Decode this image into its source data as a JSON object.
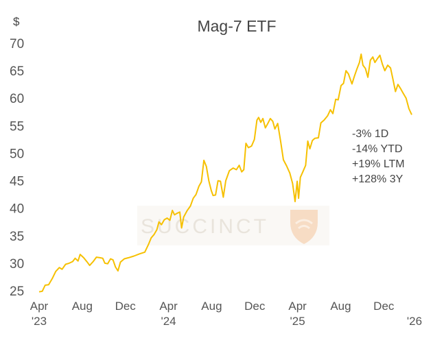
{
  "chart_data": {
    "type": "line",
    "title": "Mag-7 ETF",
    "ylabel": "$",
    "ylim": [
      25,
      70
    ],
    "yticks": [
      25,
      30,
      35,
      40,
      45,
      50,
      55,
      60,
      65,
      70
    ],
    "grid": false,
    "x_ticks": [
      {
        "x": "2023-04-01",
        "label": "Apr"
      },
      {
        "x": "2023-08-01",
        "label": "Aug"
      },
      {
        "x": "2023-12-01",
        "label": "Dec"
      },
      {
        "x": "2024-04-01",
        "label": "Apr"
      },
      {
        "x": "2024-08-01",
        "label": "Aug"
      },
      {
        "x": "2024-12-01",
        "label": "Dec"
      },
      {
        "x": "2025-04-01",
        "label": "Apr"
      },
      {
        "x": "2025-08-01",
        "label": "Aug"
      },
      {
        "x": "2025-12-01",
        "label": "Dec"
      }
    ],
    "year_labels": [
      {
        "x": "2023-04-01",
        "label": "'23"
      },
      {
        "x": "2024-04-01",
        "label": "'24"
      },
      {
        "x": "2025-04-01",
        "label": "'25"
      },
      {
        "x": "2026-04-01",
        "label": "'26"
      }
    ],
    "series": [
      {
        "color": "#f6c000",
        "points": [
          [
            "2023-04-01",
            24.8
          ],
          [
            "2023-04-10",
            24.9
          ],
          [
            "2023-04-18",
            26.0
          ],
          [
            "2023-04-28",
            26.1
          ],
          [
            "2023-05-08",
            27.2
          ],
          [
            "2023-05-18",
            28.5
          ],
          [
            "2023-05-28",
            29.2
          ],
          [
            "2023-06-05",
            28.9
          ],
          [
            "2023-06-15",
            29.8
          ],
          [
            "2023-06-25",
            30.0
          ],
          [
            "2023-07-05",
            30.3
          ],
          [
            "2023-07-12",
            30.9
          ],
          [
            "2023-07-20",
            30.4
          ],
          [
            "2023-07-26",
            31.6
          ],
          [
            "2023-08-05",
            31.0
          ],
          [
            "2023-08-15",
            30.2
          ],
          [
            "2023-08-22",
            29.6
          ],
          [
            "2023-09-01",
            30.3
          ],
          [
            "2023-09-10",
            31.1
          ],
          [
            "2023-09-20",
            31.0
          ],
          [
            "2023-09-28",
            30.9
          ],
          [
            "2023-10-04",
            30.0
          ],
          [
            "2023-10-12",
            29.9
          ],
          [
            "2023-10-20",
            30.8
          ],
          [
            "2023-10-27",
            30.6
          ],
          [
            "2023-11-03",
            29.3
          ],
          [
            "2023-11-10",
            28.6
          ],
          [
            "2023-11-17",
            30.2
          ],
          [
            "2023-11-28",
            30.8
          ],
          [
            "2023-12-10",
            31.0
          ],
          [
            "2023-12-25",
            31.3
          ],
          [
            "2024-01-10",
            31.7
          ],
          [
            "2024-01-25",
            32.0
          ],
          [
            "2024-02-05",
            33.5
          ],
          [
            "2024-02-12",
            34.6
          ],
          [
            "2024-02-20",
            35.2
          ],
          [
            "2024-02-28",
            36.1
          ],
          [
            "2024-03-05",
            37.5
          ],
          [
            "2024-03-12",
            37.0
          ],
          [
            "2024-03-20",
            37.9
          ],
          [
            "2024-03-28",
            38.2
          ],
          [
            "2024-04-05",
            37.8
          ],
          [
            "2024-04-12",
            39.6
          ],
          [
            "2024-04-18",
            38.8
          ],
          [
            "2024-04-26",
            39.1
          ],
          [
            "2024-05-03",
            39.3
          ],
          [
            "2024-05-08",
            36.4
          ],
          [
            "2024-05-14",
            38.4
          ],
          [
            "2024-05-24",
            39.6
          ],
          [
            "2024-06-02",
            40.4
          ],
          [
            "2024-06-10",
            41.8
          ],
          [
            "2024-06-18",
            42.5
          ],
          [
            "2024-06-26",
            44.0
          ],
          [
            "2024-07-03",
            44.8
          ],
          [
            "2024-07-10",
            48.7
          ],
          [
            "2024-07-17",
            47.6
          ],
          [
            "2024-07-24",
            45.0
          ],
          [
            "2024-07-31",
            43.2
          ],
          [
            "2024-08-05",
            42.3
          ],
          [
            "2024-08-12",
            42.4
          ],
          [
            "2024-08-19",
            45.0
          ],
          [
            "2024-08-26",
            44.9
          ],
          [
            "2024-09-03",
            42.0
          ],
          [
            "2024-09-10",
            45.0
          ],
          [
            "2024-09-20",
            46.8
          ],
          [
            "2024-10-01",
            47.3
          ],
          [
            "2024-10-10",
            47.0
          ],
          [
            "2024-10-18",
            47.8
          ],
          [
            "2024-10-25",
            46.6
          ],
          [
            "2024-10-31",
            47.0
          ],
          [
            "2024-11-06",
            51.8
          ],
          [
            "2024-11-13",
            51.0
          ],
          [
            "2024-11-22",
            51.3
          ],
          [
            "2024-11-30",
            52.5
          ],
          [
            "2024-12-07",
            56.0
          ],
          [
            "2024-12-12",
            56.5
          ],
          [
            "2024-12-18",
            55.6
          ],
          [
            "2024-12-24",
            56.3
          ],
          [
            "2024-12-31",
            54.6
          ],
          [
            "2025-01-07",
            55.4
          ],
          [
            "2025-01-14",
            56.3
          ],
          [
            "2025-01-21",
            55.8
          ],
          [
            "2025-01-27",
            54.4
          ],
          [
            "2025-02-04",
            55.4
          ],
          [
            "2025-02-12",
            52.2
          ],
          [
            "2025-02-20",
            48.8
          ],
          [
            "2025-03-01",
            47.7
          ],
          [
            "2025-03-10",
            46.4
          ],
          [
            "2025-03-18",
            44.5
          ],
          [
            "2025-03-25",
            41.2
          ],
          [
            "2025-03-31",
            44.9
          ],
          [
            "2025-04-04",
            41.8
          ],
          [
            "2025-04-09",
            45.6
          ],
          [
            "2025-04-16",
            46.6
          ],
          [
            "2025-04-24",
            47.8
          ],
          [
            "2025-04-30",
            52.2
          ],
          [
            "2025-05-06",
            50.8
          ],
          [
            "2025-05-13",
            52.3
          ],
          [
            "2025-05-20",
            52.7
          ],
          [
            "2025-05-30",
            52.8
          ],
          [
            "2025-06-06",
            55.5
          ],
          [
            "2025-06-15",
            56.0
          ],
          [
            "2025-06-25",
            56.8
          ],
          [
            "2025-07-03",
            57.9
          ],
          [
            "2025-07-10",
            57.2
          ],
          [
            "2025-07-18",
            59.8
          ],
          [
            "2025-07-25",
            59.7
          ],
          [
            "2025-08-02",
            62.3
          ],
          [
            "2025-08-09",
            62.7
          ],
          [
            "2025-08-16",
            65.0
          ],
          [
            "2025-08-23",
            64.4
          ],
          [
            "2025-09-02",
            62.6
          ],
          [
            "2025-09-09",
            64.0
          ],
          [
            "2025-09-16",
            65.3
          ],
          [
            "2025-09-23",
            66.5
          ],
          [
            "2025-09-28",
            68.0
          ],
          [
            "2025-10-03",
            66.0
          ],
          [
            "2025-10-10",
            65.4
          ],
          [
            "2025-10-17",
            63.8
          ],
          [
            "2025-10-24",
            66.9
          ],
          [
            "2025-10-31",
            67.5
          ],
          [
            "2025-11-06",
            66.5
          ],
          [
            "2025-11-13",
            67.2
          ],
          [
            "2025-11-20",
            67.8
          ],
          [
            "2025-11-27",
            66.2
          ],
          [
            "2025-12-04",
            65.0
          ],
          [
            "2025-12-12",
            66.0
          ],
          [
            "2025-12-20",
            65.5
          ],
          [
            "2025-12-27",
            63.4
          ],
          [
            "2026-01-03",
            61.2
          ],
          [
            "2026-01-10",
            62.5
          ],
          [
            "2026-01-17",
            61.8
          ],
          [
            "2026-01-24",
            61.0
          ],
          [
            "2026-02-02",
            60.0
          ],
          [
            "2026-02-10",
            58.1
          ],
          [
            "2026-02-18",
            57.0
          ]
        ]
      }
    ],
    "annotations": [
      "-3% 1D",
      "-14% YTD",
      "+19%  LTM",
      "+128%  3Y"
    ],
    "watermark": "SUCCINCT"
  }
}
